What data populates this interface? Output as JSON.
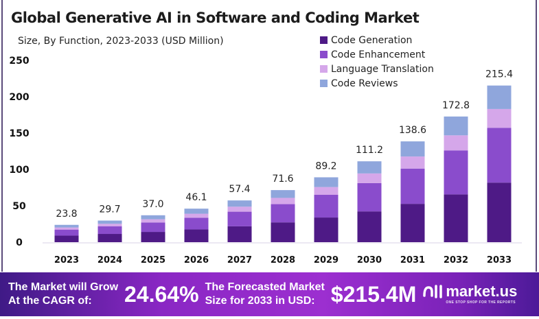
{
  "chart_data": {
    "type": "bar",
    "stacked": true,
    "title": "Global Generative AI in Software and Coding Market",
    "subtitle": "Size, By Function, 2023-2033 (USD Million)",
    "categories": [
      "2023",
      "2024",
      "2025",
      "2026",
      "2027",
      "2028",
      "2029",
      "2030",
      "2031",
      "2032",
      "2033"
    ],
    "totals": [
      "23.8",
      "29.7",
      "37.0",
      "46.1",
      "57.4",
      "71.6",
      "89.2",
      "111.2",
      "138.6",
      "172.8",
      "215.4"
    ],
    "series": [
      {
        "name": "Code Generation",
        "color": "#4e1a86",
        "values": [
          9.0,
          11.3,
          14.1,
          17.5,
          21.8,
          27.2,
          33.9,
          42.3,
          52.7,
          65.7,
          81.9
        ]
      },
      {
        "name": "Code Enhancement",
        "color": "#8a4ccc",
        "values": [
          8.3,
          10.4,
          13.0,
          16.1,
          20.1,
          25.1,
          31.2,
          38.9,
          48.5,
          60.5,
          75.4
        ]
      },
      {
        "name": "Language Translation",
        "color": "#d5a7ea",
        "values": [
          2.9,
          3.6,
          4.4,
          5.5,
          6.9,
          8.6,
          10.7,
          13.3,
          16.6,
          20.7,
          25.8
        ]
      },
      {
        "name": "Code Reviews",
        "color": "#8fa6dc",
        "values": [
          3.6,
          4.4,
          5.5,
          7.0,
          8.6,
          10.7,
          13.4,
          16.7,
          20.8,
          25.9,
          32.3
        ]
      }
    ],
    "yticks": [
      "0",
      "50",
      "100",
      "150",
      "200",
      "250"
    ],
    "ylim": [
      0,
      250
    ],
    "grid": false,
    "legend": "top-right"
  },
  "footer": {
    "cagr_label_1": "The Market will Grow",
    "cagr_label_2": "At the CAGR of:",
    "cagr_value": "24.64%",
    "forecast_label_1": "The Forecasted Market",
    "forecast_label_2": "Size for 2033 in USD:",
    "forecast_value": "$215.4M",
    "brand": "market.us",
    "tagline": "ONE STOP SHOP FOR THE REPORTS"
  }
}
